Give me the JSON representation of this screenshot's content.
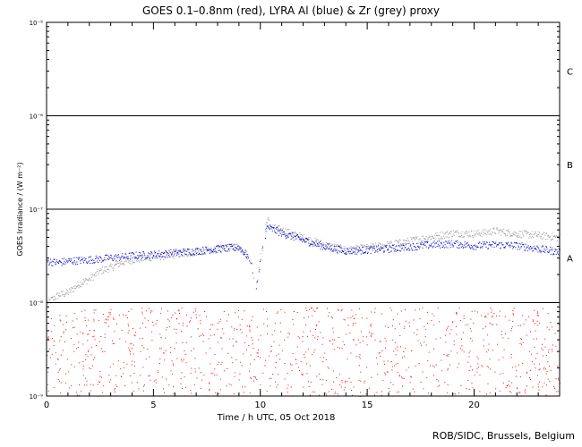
{
  "chart_data": {
    "type": "scatter",
    "title": "GOES 0.1–0.8nm (red), LYRA Al (blue) & Zr (grey) proxy",
    "xlabel": "Time / h UTC, 05 Oct 2018",
    "ylabel": "GOES Irradiance / (W m⁻²)",
    "xlim": [
      0,
      24
    ],
    "ylim": [
      1e-09,
      1e-05
    ],
    "yscale": "log",
    "x_ticks": [
      0,
      5,
      10,
      15,
      20
    ],
    "y_ticks": [
      {
        "value": 1e-09,
        "label": "10⁻⁹"
      },
      {
        "value": 1e-08,
        "label": "10⁻⁸"
      },
      {
        "value": 1e-07,
        "label": "10⁻⁷"
      },
      {
        "value": 1e-06,
        "label": "10⁻⁶"
      },
      {
        "value": 1e-05,
        "label": "10⁻⁵"
      }
    ],
    "flare_classes": [
      {
        "label": "A",
        "value": 3e-08
      },
      {
        "label": "B",
        "value": 3e-07
      },
      {
        "label": "C",
        "value": 3e-06
      }
    ],
    "class_lines": [
      1e-08,
      1e-07,
      1e-06
    ],
    "colors": {
      "goes": "#ff0000",
      "lyra_al": "#0000cc",
      "lyra_zr": "#999999",
      "axes": "#000000"
    },
    "series": [
      {
        "key": "lyra_zr",
        "x": [
          0,
          0.5,
          1,
          1.5,
          2,
          2.5,
          3,
          3.5,
          4,
          5,
          6,
          7,
          8,
          9,
          9.5,
          9.8,
          10,
          10.3,
          10.5,
          11,
          12,
          13,
          14,
          15,
          16,
          17,
          18,
          19,
          20,
          21,
          22,
          23,
          24
        ],
        "y": [
          1e-08,
          1.2e-08,
          1.3e-08,
          1.6e-08,
          1.8e-08,
          2.2e-08,
          2.4e-08,
          2.7e-08,
          2.9e-08,
          3.1e-08,
          3.3e-08,
          3.5e-08,
          3.8e-08,
          4e-08,
          3e-08,
          1.5e-08,
          3e-08,
          8e-08,
          6.5e-08,
          6e-08,
          5e-08,
          4.2e-08,
          3.7e-08,
          3.9e-08,
          4.2e-08,
          4.6e-08,
          5.1e-08,
          5.6e-08,
          5.5e-08,
          5.9e-08,
          5.5e-08,
          5.3e-08,
          5e-08
        ]
      },
      {
        "key": "lyra_al",
        "x": [
          0,
          0.5,
          1,
          1.5,
          2,
          2.5,
          3,
          3.5,
          4,
          5,
          6,
          7,
          8,
          9,
          9.5,
          9.8,
          10,
          10.3,
          10.5,
          11,
          12,
          13,
          14,
          15,
          16,
          17,
          18,
          19,
          20,
          21,
          22,
          23,
          24
        ],
        "y": [
          2.8e-08,
          2.7e-08,
          2.8e-08,
          2.85e-08,
          2.9e-08,
          2.95e-08,
          3.05e-08,
          3.1e-08,
          3.2e-08,
          3.3e-08,
          3.45e-08,
          3.6e-08,
          3.8e-08,
          3.95e-08,
          3e-08,
          1.5e-08,
          3e-08,
          6.5e-08,
          6.2e-08,
          5.6e-08,
          4.7e-08,
          4e-08,
          3.6e-08,
          3.7e-08,
          3.8e-08,
          4e-08,
          4.2e-08,
          4.3e-08,
          4.1e-08,
          4.2e-08,
          4.1e-08,
          3.8e-08,
          3.5e-08
        ]
      },
      {
        "key": "goes",
        "note_density": "sparse noisy floor points near 1e-9 to 1e-8",
        "x_start": 0,
        "x_end": 24
      }
    ]
  },
  "credit": "ROB/SIDC, Brussels, Belgium"
}
